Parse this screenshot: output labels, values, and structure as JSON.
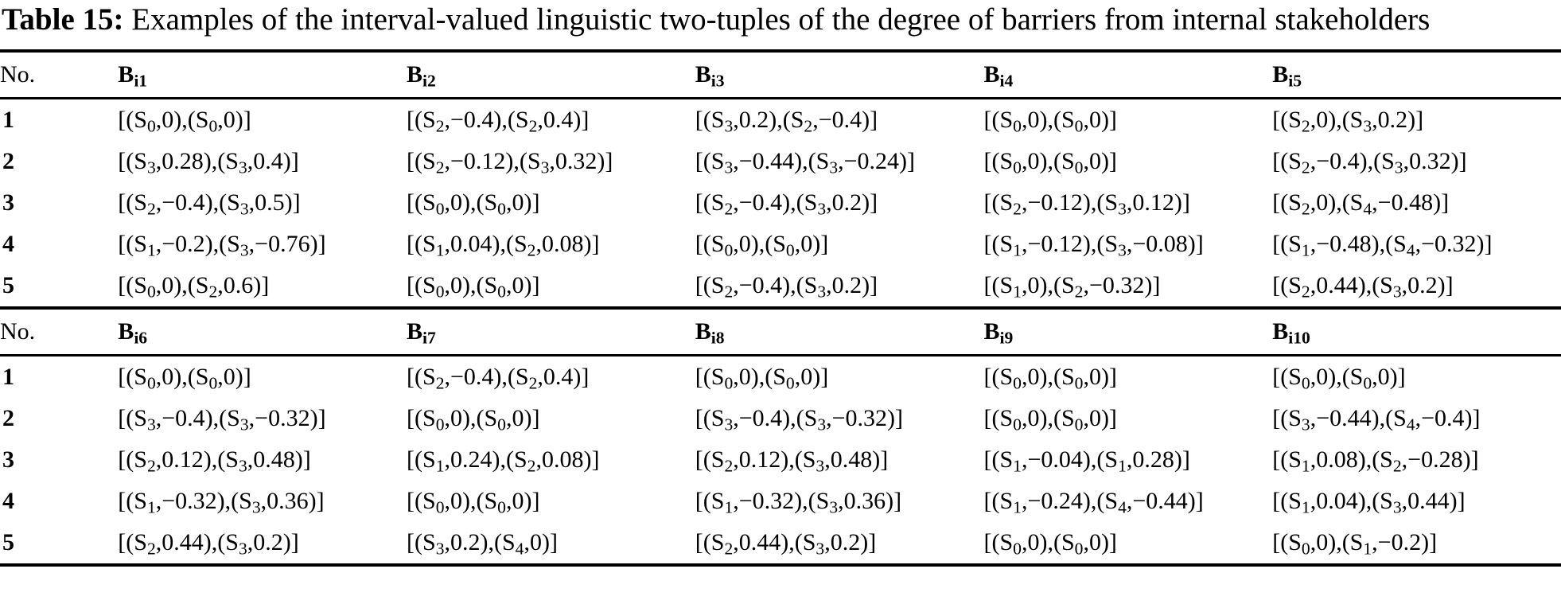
{
  "title": {
    "label": "Table 15:",
    "text": " Examples of the interval-valued linguistic two-tuples of the degree of barriers from internal stakeholders"
  },
  "table": {
    "sections": [
      {
        "no_header": "No.",
        "headers": [
          "B_{i1}",
          "B_{i2}",
          "B_{i3}",
          "B_{i4}",
          "B_{i5}"
        ],
        "rows": [
          {
            "no": "1",
            "cells": [
              "[(S_{0},0),(S_{0},0)]",
              "[(S_{2},−0.4),(S_{2},0.4)]",
              "[(S_{3},0.2),(S_{2},−0.4)]",
              "[(S_{0},0),(S_{0},0)]",
              "[(S_{2},0),(S_{3},0.2)]"
            ]
          },
          {
            "no": "2",
            "cells": [
              "[(S_{3},0.28),(S_{3},0.4)]",
              "[(S_{2},−0.12),(S_{3},0.32)]",
              "[(S_{3},−0.44),(S_{3},−0.24)]",
              "[(S_{0},0),(S_{0},0)]",
              "[(S_{2},−0.4),(S_{3},0.32)]"
            ]
          },
          {
            "no": "3",
            "cells": [
              "[(S_{2},−0.4),(S_{3},0.5)]",
              "[(S_{0},0),(S_{0},0)]",
              "[(S_{2},−0.4),(S_{3},0.2)]",
              "[(S_{2},−0.12),(S_{3},0.12)]",
              "[(S_{2},0),(S_{4},−0.48)]"
            ]
          },
          {
            "no": "4",
            "cells": [
              "[(S_{1},−0.2),(S_{3},−0.76)]",
              "[(S_{1},0.04),(S_{2},0.08)]",
              "[(S_{0},0),(S_{0},0)]",
              "[(S_{1},−0.12),(S_{3},−0.08)]",
              "[(S_{1},−0.48),(S_{4},−0.32)]"
            ]
          },
          {
            "no": "5",
            "cells": [
              "[(S_{0},0),(S_{2},0.6)]",
              "[(S_{0},0),(S_{0},0)]",
              "[(S_{2},−0.4),(S_{3},0.2)]",
              "[(S_{1},0),(S_{2},−0.32)]",
              "[(S_{2},0.44),(S_{3},0.2)]"
            ]
          }
        ]
      },
      {
        "no_header": "No.",
        "headers": [
          "B_{i6}",
          "B_{i7}",
          "B_{i8}",
          "B_{i9}",
          "B_{i10}"
        ],
        "rows": [
          {
            "no": "1",
            "cells": [
              "[(S_{0},0),(S_{0},0)]",
              "[(S_{2},−0.4),(S_{2},0.4)]",
              "[(S_{0},0),(S_{0},0)]",
              "[(S_{0},0),(S_{0},0)]",
              "[(S_{0},0),(S_{0},0)]"
            ]
          },
          {
            "no": "2",
            "cells": [
              "[(S_{3},−0.4),(S_{3},−0.32)]",
              "[(S_{0},0),(S_{0},0)]",
              "[(S_{3},−0.4),(S_{3},−0.32)]",
              "[(S_{0},0),(S_{0},0)]",
              "[(S_{3},−0.44),(S_{4},−0.4)]"
            ]
          },
          {
            "no": "3",
            "cells": [
              "[(S_{2},0.12),(S_{3},0.48)]",
              "[(S_{1},0.24),(S_{2},0.08)]",
              "[(S_{2},0.12),(S_{3},0.48)]",
              "[(S_{1},−0.04),(S_{1},0.28)]",
              "[(S_{1},0.08),(S_{2},−0.28)]"
            ]
          },
          {
            "no": "4",
            "cells": [
              "[(S_{1},−0.32),(S_{3},0.36)]",
              "[(S_{0},0),(S_{0},0)]",
              "[(S_{1},−0.32),(S_{3},0.36)]",
              "[(S_{1},−0.24),(S_{4},−0.44)]",
              "[(S_{1},0.04),(S_{3},0.44)]"
            ]
          },
          {
            "no": "5",
            "cells": [
              "[(S_{2},0.44),(S_{3},0.2)]",
              "[(S_{3},0.2),(S_{4},0)]",
              "[(S_{2},0.44),(S_{3},0.2)]",
              "[(S_{0},0),(S_{0},0)]",
              "[(S_{0},0),(S_{1},−0.2)]"
            ]
          }
        ]
      }
    ]
  }
}
